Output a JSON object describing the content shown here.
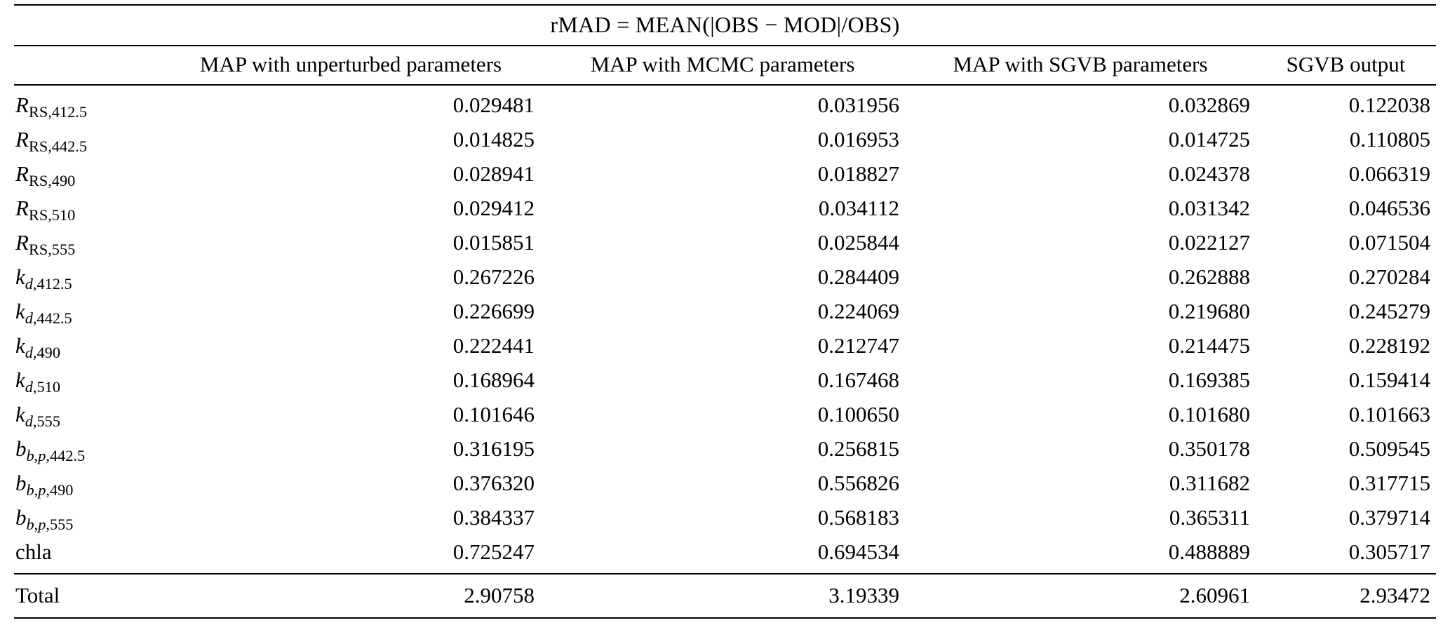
{
  "title": "rMAD = MEAN(|OBS − MOD|/OBS)",
  "table": {
    "columns": [
      "MAP with unperturbed parameters",
      "MAP with MCMC parameters",
      "MAP with SGVB parameters",
      "SGVB output"
    ],
    "rows": [
      {
        "label": [
          {
            "text": "R",
            "italic": true,
            "sub": false
          },
          {
            "text": "RS,412.5",
            "italic": false,
            "sub": true
          }
        ],
        "values": [
          "0.029481",
          "0.031956",
          "0.032869",
          "0.122038"
        ]
      },
      {
        "label": [
          {
            "text": "R",
            "italic": true,
            "sub": false
          },
          {
            "text": "RS,442.5",
            "italic": false,
            "sub": true
          }
        ],
        "values": [
          "0.014825",
          "0.016953",
          "0.014725",
          "0.110805"
        ]
      },
      {
        "label": [
          {
            "text": "R",
            "italic": true,
            "sub": false
          },
          {
            "text": "RS,490",
            "italic": false,
            "sub": true
          }
        ],
        "values": [
          "0.028941",
          "0.018827",
          "0.024378",
          "0.066319"
        ]
      },
      {
        "label": [
          {
            "text": "R",
            "italic": true,
            "sub": false
          },
          {
            "text": "RS,510",
            "italic": false,
            "sub": true
          }
        ],
        "values": [
          "0.029412",
          "0.034112",
          "0.031342",
          "0.046536"
        ]
      },
      {
        "label": [
          {
            "text": "R",
            "italic": true,
            "sub": false
          },
          {
            "text": "RS,555",
            "italic": false,
            "sub": true
          }
        ],
        "values": [
          "0.015851",
          "0.025844",
          "0.022127",
          "0.071504"
        ]
      },
      {
        "label": [
          {
            "text": "k",
            "italic": true,
            "sub": false
          },
          {
            "text": "d",
            "italic": true,
            "sub": true
          },
          {
            "text": ",412.5",
            "italic": false,
            "sub": true
          }
        ],
        "values": [
          "0.267226",
          "0.284409",
          "0.262888",
          "0.270284"
        ]
      },
      {
        "label": [
          {
            "text": "k",
            "italic": true,
            "sub": false
          },
          {
            "text": "d",
            "italic": true,
            "sub": true
          },
          {
            "text": ",442.5",
            "italic": false,
            "sub": true
          }
        ],
        "values": [
          "0.226699",
          "0.224069",
          "0.219680",
          "0.245279"
        ]
      },
      {
        "label": [
          {
            "text": "k",
            "italic": true,
            "sub": false
          },
          {
            "text": "d",
            "italic": true,
            "sub": true
          },
          {
            "text": ",490",
            "italic": false,
            "sub": true
          }
        ],
        "values": [
          "0.222441",
          "0.212747",
          "0.214475",
          "0.228192"
        ]
      },
      {
        "label": [
          {
            "text": "k",
            "italic": true,
            "sub": false
          },
          {
            "text": "d",
            "italic": true,
            "sub": true
          },
          {
            "text": ",510",
            "italic": false,
            "sub": true
          }
        ],
        "values": [
          "0.168964",
          "0.167468",
          "0.169385",
          "0.159414"
        ]
      },
      {
        "label": [
          {
            "text": "k",
            "italic": true,
            "sub": false
          },
          {
            "text": "d",
            "italic": true,
            "sub": true
          },
          {
            "text": ",555",
            "italic": false,
            "sub": true
          }
        ],
        "values": [
          "0.101646",
          "0.100650",
          "0.101680",
          "0.101663"
        ]
      },
      {
        "label": [
          {
            "text": "b",
            "italic": true,
            "sub": false
          },
          {
            "text": "b",
            "italic": true,
            "sub": true
          },
          {
            "text": ",",
            "italic": false,
            "sub": true
          },
          {
            "text": "p",
            "italic": true,
            "sub": true
          },
          {
            "text": ",442.5",
            "italic": false,
            "sub": true
          }
        ],
        "values": [
          "0.316195",
          "0.256815",
          "0.350178",
          "0.509545"
        ]
      },
      {
        "label": [
          {
            "text": "b",
            "italic": true,
            "sub": false
          },
          {
            "text": "b",
            "italic": true,
            "sub": true
          },
          {
            "text": ",",
            "italic": false,
            "sub": true
          },
          {
            "text": "p",
            "italic": true,
            "sub": true
          },
          {
            "text": ",490",
            "italic": false,
            "sub": true
          }
        ],
        "values": [
          "0.376320",
          "0.556826",
          "0.311682",
          "0.317715"
        ]
      },
      {
        "label": [
          {
            "text": "b",
            "italic": true,
            "sub": false
          },
          {
            "text": "b",
            "italic": true,
            "sub": true
          },
          {
            "text": ",",
            "italic": false,
            "sub": true
          },
          {
            "text": "p",
            "italic": true,
            "sub": true
          },
          {
            "text": ",555",
            "italic": false,
            "sub": true
          }
        ],
        "values": [
          "0.384337",
          "0.568183",
          "0.365311",
          "0.379714"
        ]
      },
      {
        "label": [
          {
            "text": "chla",
            "italic": false,
            "sub": false
          }
        ],
        "values": [
          "0.725247",
          "0.694534",
          "0.488889",
          "0.305717"
        ]
      }
    ],
    "total": {
      "label": "Total",
      "values": [
        "2.90758",
        "3.19339",
        "2.60961",
        "2.93472"
      ]
    }
  }
}
